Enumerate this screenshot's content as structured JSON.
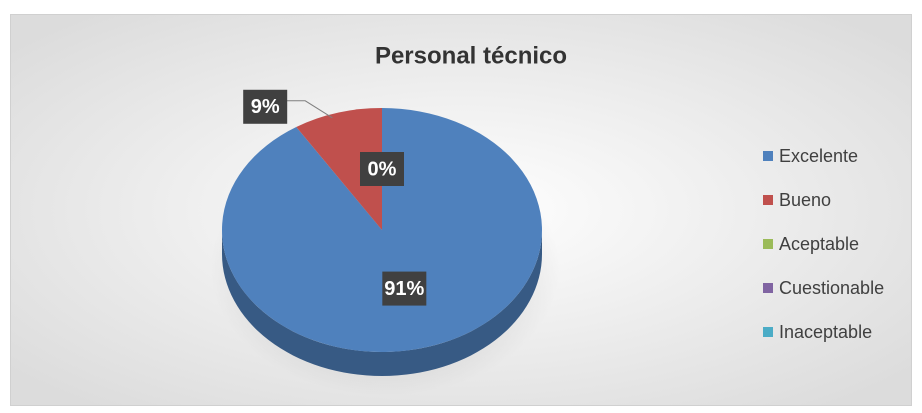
{
  "chart_data": {
    "type": "pie3d",
    "title": "Personal técnico",
    "categories": [
      "Excelente",
      "Bueno",
      "Aceptable",
      "Cuestionable",
      "Inaceptable"
    ],
    "values": [
      91,
      9,
      0,
      0,
      0
    ],
    "value_labels": [
      "91%",
      "9%",
      "0%",
      "0%",
      "0%"
    ],
    "colors": [
      "#4f81bd",
      "#c0504d",
      "#9bbb59",
      "#8064a2",
      "#4bacc6"
    ],
    "legend": "right"
  }
}
